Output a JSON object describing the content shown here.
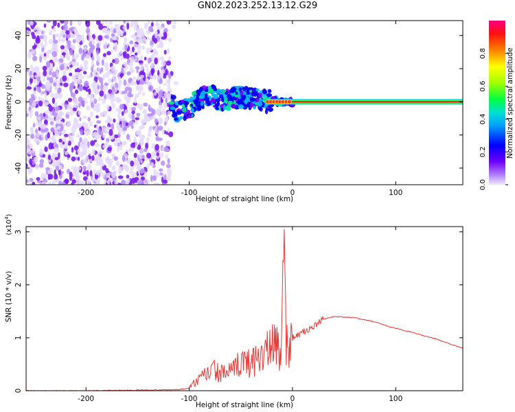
{
  "title": "GN02.2023.252.13.12.G29",
  "chart_data": [
    {
      "type": "heatmap",
      "xlabel": "Height of straight line (km)",
      "ylabel": "Frequency (Hz)",
      "xlim": [
        -258,
        165
      ],
      "ylim": [
        -50,
        49
      ],
      "xticks": [
        -200,
        -100,
        0,
        100
      ],
      "yticks": [
        -40,
        -20,
        0,
        20,
        40
      ],
      "noise_region_x": [
        -258,
        -118
      ],
      "coherent_track": [
        {
          "x": -115,
          "y": -6
        },
        {
          "x": -100,
          "y": -4
        },
        {
          "x": -90,
          "y": 2
        },
        {
          "x": -80,
          "y": 4
        },
        {
          "x": -70,
          "y": 0
        },
        {
          "x": -60,
          "y": 2
        },
        {
          "x": -50,
          "y": 3
        },
        {
          "x": -40,
          "y": 2
        },
        {
          "x": -30,
          "y": 1
        },
        {
          "x": -25,
          "y": 0
        },
        {
          "x": -20,
          "y": 1
        },
        {
          "x": -10,
          "y": 0
        },
        {
          "x": 0,
          "y": 0
        },
        {
          "x": 165,
          "y": 0
        }
      ],
      "colorbar": {
        "label": "Normalized spectral amplitude",
        "range": [
          0,
          1
        ],
        "ticks": [
          "0.0",
          "0.2",
          "0.4",
          "0.6",
          "0.8"
        ],
        "colors": [
          "#e6e6fa",
          "#8000ff",
          "#0000ff",
          "#00c0ff",
          "#00ff80",
          "#80ff00",
          "#ffff00",
          "#ff8000",
          "#ff0000",
          "#ff0080"
        ]
      }
    },
    {
      "type": "line",
      "xlabel": "Height of straight line (km)",
      "ylabel": "SNR (10 * v/v)",
      "yscale_label": "(x10",
      "yscale_exp": "4",
      "yscale_close": ")",
      "xlim": [
        -258,
        165
      ],
      "ylim": [
        0,
        3.1
      ],
      "xticks": [
        -200,
        -100,
        0,
        100
      ],
      "yticks": [
        0,
        1,
        2,
        3
      ],
      "color": "#ee3333",
      "series": [
        {
          "x": [
            -258,
            -200,
            -150,
            -110,
            -100,
            -95,
            -90,
            -85,
            -80,
            -75,
            -70,
            -65,
            -60,
            -55,
            -50,
            -45,
            -40,
            -35,
            -30,
            -25,
            -20,
            -15,
            -12,
            -10,
            -8,
            -6,
            -4,
            -2,
            0,
            10,
            20,
            30,
            40,
            60,
            80,
            95,
            100,
            120,
            140,
            165
          ],
          "y": [
            0.0,
            0.0,
            0.01,
            0.02,
            0.05,
            0.15,
            0.2,
            0.3,
            0.35,
            0.4,
            0.3,
            0.35,
            0.35,
            0.4,
            0.6,
            0.5,
            0.55,
            0.6,
            0.7,
            0.75,
            0.8,
            0.9,
            0.7,
            1.2,
            3.05,
            0.85,
            0.9,
            0.95,
            1.0,
            1.1,
            1.2,
            1.35,
            1.4,
            1.38,
            1.3,
            1.2,
            1.18,
            1.08,
            0.97,
            0.8
          ]
        }
      ]
    }
  ]
}
